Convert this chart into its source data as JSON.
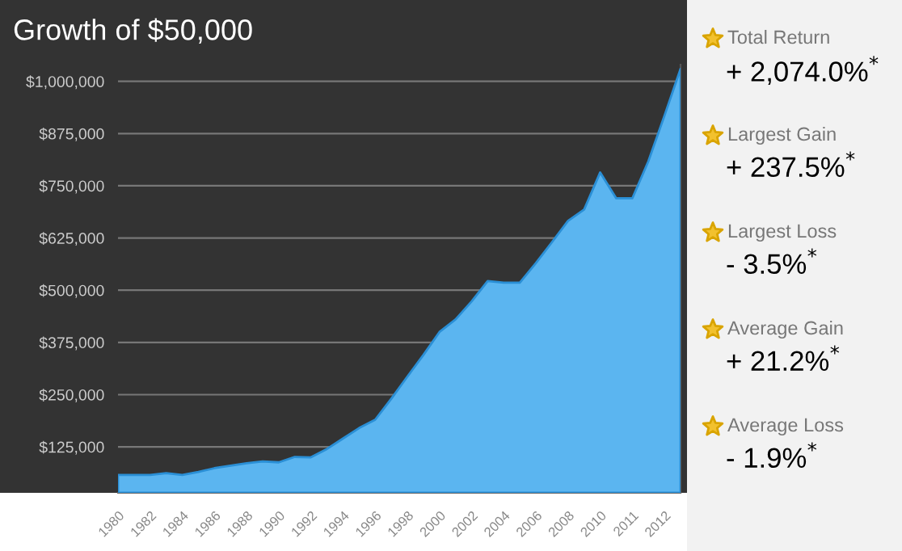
{
  "chart_data": {
    "type": "area",
    "title": "Growth of $50,000",
    "categories": [
      "1980",
      null,
      "1982",
      null,
      "1984",
      null,
      "1986",
      null,
      "1988",
      null,
      "1990",
      null,
      "1992",
      null,
      "1994",
      null,
      "1996",
      null,
      "1998",
      null,
      "2000",
      null,
      "2002",
      null,
      "2004",
      null,
      "2006",
      null,
      "2008",
      null,
      "2010",
      null,
      "2011",
      null,
      "2012",
      null
    ],
    "series": [
      {
        "color": "#5bb5f0",
        "values": [
          58000,
          58000,
          58000,
          62000,
          58000,
          65000,
          74000,
          80000,
          86000,
          90000,
          88000,
          101000,
          100000,
          120000,
          145000,
          170000,
          190000,
          240000,
          293000,
          345000,
          400000,
          430000,
          473000,
          522000,
          518000,
          518000,
          565000,
          615000,
          666000,
          693000,
          782000,
          720000,
          720000,
          809000,
          918000,
          1030000
        ]
      }
    ],
    "ylim": [
      15000,
      1040000
    ],
    "yticks": [
      {
        "value": 125000,
        "label": "$125,000"
      },
      {
        "value": 250000,
        "label": "$250,000"
      },
      {
        "value": 375000,
        "label": "$375,000"
      },
      {
        "value": 500000,
        "label": "$500,000"
      },
      {
        "value": 625000,
        "label": "$625,000"
      },
      {
        "value": 750000,
        "label": "$750,000"
      },
      {
        "value": 875000,
        "label": "$875,000"
      },
      {
        "value": 1000000,
        "label": "$1,000,000"
      }
    ],
    "grid": "y",
    "annotations": [
      "Total Return",
      "+ 2,074.0%$^{*}$",
      "Largest Gain",
      "+ 237.5%$^{*}$",
      "Largest Loss",
      "- 3.5%$^{*}$",
      "Average Gain",
      "+ 21.2%$^{*}$",
      "Average Loss",
      "- 1.9%$^{*}$"
    ]
  }
}
